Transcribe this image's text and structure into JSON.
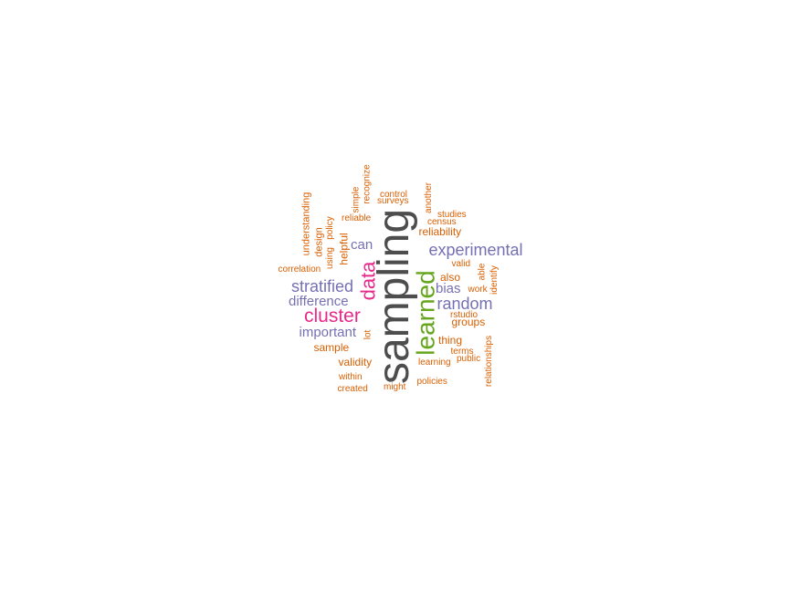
{
  "palette": {
    "gray": "#4d4d4d",
    "green": "#66a61e",
    "magenta": "#e7298a",
    "purple": "#7570b3",
    "orange": "#d95f02"
  },
  "words": [
    {
      "text": "sampling",
      "color": "gray"
    },
    {
      "text": "learned",
      "color": "green"
    },
    {
      "text": "data",
      "color": "magenta"
    },
    {
      "text": "cluster",
      "color": "magenta"
    },
    {
      "text": "experimental",
      "color": "purple"
    },
    {
      "text": "stratified",
      "color": "purple"
    },
    {
      "text": "random",
      "color": "purple"
    },
    {
      "text": "difference",
      "color": "purple"
    },
    {
      "text": "important",
      "color": "purple"
    },
    {
      "text": "bias",
      "color": "purple"
    },
    {
      "text": "can",
      "color": "purple"
    },
    {
      "text": "reliability",
      "color": "orange"
    },
    {
      "text": "also",
      "color": "orange"
    },
    {
      "text": "groups",
      "color": "orange"
    },
    {
      "text": "thing",
      "color": "orange"
    },
    {
      "text": "validity",
      "color": "orange"
    },
    {
      "text": "sample",
      "color": "orange"
    },
    {
      "text": "helpful",
      "color": "orange"
    },
    {
      "text": "understanding",
      "color": "orange"
    },
    {
      "text": "design",
      "color": "orange"
    },
    {
      "text": "using",
      "color": "orange"
    },
    {
      "text": "policy",
      "color": "orange"
    },
    {
      "text": "simple",
      "color": "orange"
    },
    {
      "text": "recognize",
      "color": "orange"
    },
    {
      "text": "reliable",
      "color": "orange"
    },
    {
      "text": "control",
      "color": "orange"
    },
    {
      "text": "surveys",
      "color": "orange"
    },
    {
      "text": "another",
      "color": "orange"
    },
    {
      "text": "studies",
      "color": "orange"
    },
    {
      "text": "census",
      "color": "orange"
    },
    {
      "text": "correlation",
      "color": "orange"
    },
    {
      "text": "valid",
      "color": "orange"
    },
    {
      "text": "able",
      "color": "orange"
    },
    {
      "text": "identify",
      "color": "orange"
    },
    {
      "text": "work",
      "color": "orange"
    },
    {
      "text": "rstudio",
      "color": "orange"
    },
    {
      "text": "lot",
      "color": "orange"
    },
    {
      "text": "terms",
      "color": "orange"
    },
    {
      "text": "relationships",
      "color": "orange"
    },
    {
      "text": "learning",
      "color": "orange"
    },
    {
      "text": "public",
      "color": "orange"
    },
    {
      "text": "within",
      "color": "orange"
    },
    {
      "text": "created",
      "color": "orange"
    },
    {
      "text": "might",
      "color": "orange"
    },
    {
      "text": "policies",
      "color": "orange"
    }
  ]
}
